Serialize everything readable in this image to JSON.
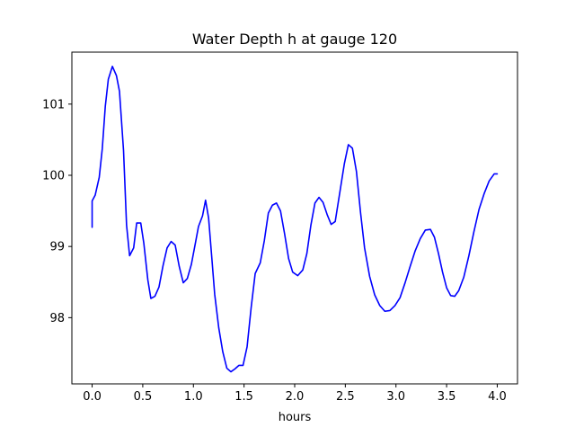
{
  "chart_data": {
    "type": "line",
    "title": "Water Depth h at gauge 120",
    "xlabel": "hours",
    "ylabel": "",
    "xlim": [
      -0.2,
      4.2
    ],
    "ylim": [
      97.07,
      101.73
    ],
    "x_ticks": [
      0.0,
      0.5,
      1.0,
      1.5,
      2.0,
      2.5,
      3.0,
      3.5,
      4.0
    ],
    "x_tick_labels": [
      "0.0",
      "0.5",
      "1.0",
      "1.5",
      "2.0",
      "2.5",
      "3.0",
      "3.5",
      "4.0"
    ],
    "y_ticks": [
      98,
      99,
      100,
      101
    ],
    "y_tick_labels": [
      "98",
      "99",
      "100",
      "101"
    ],
    "grid": false,
    "series": [
      {
        "color": "#0000ff",
        "x": [
          0.0,
          0.0,
          0.03,
          0.07,
          0.1,
          0.13,
          0.16,
          0.2,
          0.24,
          0.27,
          0.31,
          0.34,
          0.37,
          0.41,
          0.44,
          0.48,
          0.51,
          0.55,
          0.58,
          0.62,
          0.66,
          0.7,
          0.74,
          0.78,
          0.82,
          0.86,
          0.9,
          0.94,
          0.98,
          1.02,
          1.05,
          1.09,
          1.12,
          1.15,
          1.18,
          1.21,
          1.25,
          1.29,
          1.33,
          1.37,
          1.41,
          1.45,
          1.49,
          1.53,
          1.57,
          1.61,
          1.66,
          1.7,
          1.74,
          1.78,
          1.82,
          1.86,
          1.9,
          1.94,
          1.98,
          2.03,
          2.08,
          2.12,
          2.16,
          2.2,
          2.24,
          2.28,
          2.32,
          2.36,
          2.4,
          2.45,
          2.49,
          2.53,
          2.57,
          2.61,
          2.65,
          2.69,
          2.74,
          2.79,
          2.84,
          2.89,
          2.94,
          2.99,
          3.04,
          3.09,
          3.14,
          3.19,
          3.24,
          3.29,
          3.34,
          3.38,
          3.42,
          3.46,
          3.5,
          3.54,
          3.58,
          3.62,
          3.67,
          3.72,
          3.77,
          3.82,
          3.87,
          3.92,
          3.97,
          4.0
        ],
        "y": [
          99.27,
          99.64,
          99.72,
          99.97,
          100.37,
          100.97,
          101.35,
          101.53,
          101.4,
          101.18,
          100.35,
          99.3,
          98.87,
          98.98,
          99.33,
          99.33,
          99.05,
          98.53,
          98.27,
          98.3,
          98.43,
          98.73,
          98.98,
          99.07,
          99.02,
          98.72,
          98.49,
          98.55,
          98.75,
          99.05,
          99.28,
          99.43,
          99.65,
          99.4,
          98.87,
          98.33,
          97.86,
          97.52,
          97.29,
          97.24,
          97.28,
          97.33,
          97.33,
          97.59,
          98.14,
          98.62,
          98.77,
          99.08,
          99.47,
          99.58,
          99.61,
          99.5,
          99.18,
          98.83,
          98.64,
          98.59,
          98.67,
          98.9,
          99.3,
          99.61,
          99.69,
          99.62,
          99.45,
          99.31,
          99.35,
          99.8,
          100.16,
          100.43,
          100.38,
          100.05,
          99.48,
          98.98,
          98.58,
          98.32,
          98.17,
          98.09,
          98.1,
          98.17,
          98.28,
          98.49,
          98.72,
          98.94,
          99.11,
          99.23,
          99.24,
          99.13,
          98.9,
          98.64,
          98.42,
          98.31,
          98.3,
          98.38,
          98.57,
          98.87,
          99.21,
          99.52,
          99.74,
          99.92,
          100.02,
          100.02
        ]
      }
    ]
  }
}
